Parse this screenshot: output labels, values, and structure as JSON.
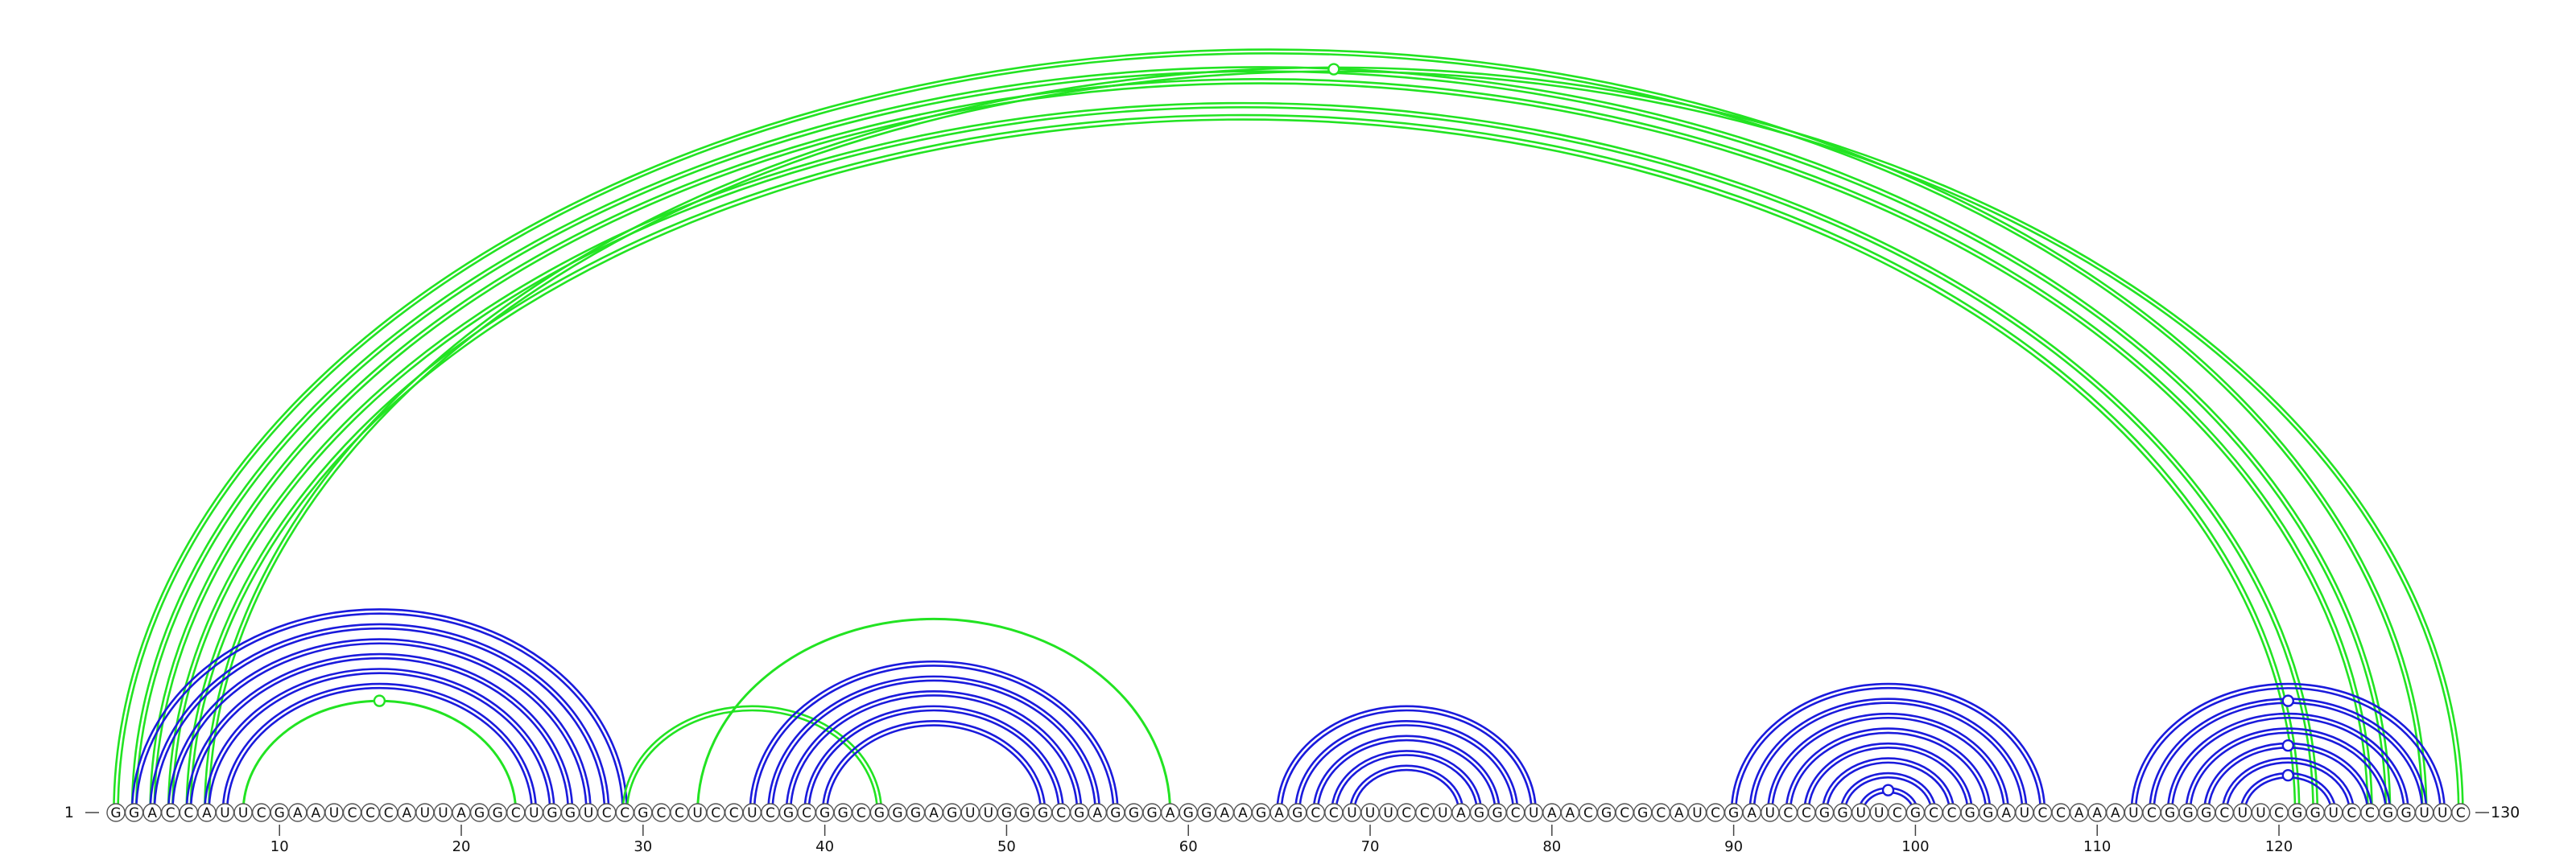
{
  "sequence": "GGACCAUUCGAAUCCCAUUAGGCUGGUCCGCCUCCUCGCGGCGGGAGUUGGGCGAGGGAGGAAGAGCCUUUCCUAGGCUAACGCGCAUCGAUCCGGUUCGCCGGAUCCAAAUCGGGCUUCGGUCCGGUUC",
  "start_label": "1",
  "end_label": "130",
  "axis_ticks": [
    10,
    20,
    30,
    40,
    50,
    60,
    70,
    80,
    90,
    100,
    110,
    120
  ],
  "colors": {
    "blue": "#1a1adc",
    "green": "#22e322",
    "node_stroke": "#555555"
  },
  "arcs": [
    {
      "i": 1,
      "j": 128,
      "color": "green",
      "double": true
    },
    {
      "i": 2,
      "j": 126,
      "color": "green",
      "double": true
    },
    {
      "i": 3,
      "j": 125,
      "color": "green",
      "double": true
    },
    {
      "i": 4,
      "j": 122,
      "color": "green",
      "double": true
    },
    {
      "i": 5,
      "j": 121,
      "color": "green",
      "double": true
    },
    {
      "i": 6,
      "j": 130,
      "color": "green",
      "double": true,
      "marker": true
    },
    {
      "i": 2,
      "j": 29,
      "color": "blue",
      "double": true
    },
    {
      "i": 3,
      "j": 28,
      "color": "blue",
      "double": true
    },
    {
      "i": 4,
      "j": 27,
      "color": "blue",
      "double": true
    },
    {
      "i": 5,
      "j": 26,
      "color": "blue",
      "double": true
    },
    {
      "i": 6,
      "j": 25,
      "color": "blue",
      "double": true
    },
    {
      "i": 7,
      "j": 24,
      "color": "blue",
      "double": true
    },
    {
      "i": 8,
      "j": 23,
      "color": "green",
      "double": false,
      "marker": true
    },
    {
      "i": 29,
      "j": 43,
      "color": "green",
      "double": true
    },
    {
      "i": 33,
      "j": 59,
      "color": "green",
      "double": false
    },
    {
      "i": 36,
      "j": 56,
      "color": "blue",
      "double": true
    },
    {
      "i": 37,
      "j": 55,
      "color": "blue",
      "double": true
    },
    {
      "i": 38,
      "j": 54,
      "color": "blue",
      "double": true
    },
    {
      "i": 39,
      "j": 53,
      "color": "blue",
      "double": true
    },
    {
      "i": 40,
      "j": 52,
      "color": "blue",
      "double": true
    },
    {
      "i": 65,
      "j": 79,
      "color": "blue",
      "double": true
    },
    {
      "i": 66,
      "j": 78,
      "color": "blue",
      "double": true
    },
    {
      "i": 67,
      "j": 77,
      "color": "blue",
      "double": true
    },
    {
      "i": 68,
      "j": 76,
      "color": "blue",
      "double": true
    },
    {
      "i": 69,
      "j": 75,
      "color": "blue",
      "double": true
    },
    {
      "i": 90,
      "j": 107,
      "color": "blue",
      "double": true
    },
    {
      "i": 91,
      "j": 106,
      "color": "blue",
      "double": true
    },
    {
      "i": 92,
      "j": 105,
      "color": "blue",
      "double": true
    },
    {
      "i": 93,
      "j": 104,
      "color": "blue",
      "double": true
    },
    {
      "i": 94,
      "j": 103,
      "color": "blue",
      "double": true
    },
    {
      "i": 95,
      "j": 102,
      "color": "blue",
      "double": true
    },
    {
      "i": 96,
      "j": 101,
      "color": "blue",
      "double": true
    },
    {
      "i": 97,
      "j": 100,
      "color": "blue",
      "double": true,
      "marker": true
    },
    {
      "i": 112,
      "j": 129,
      "color": "blue",
      "double": true
    },
    {
      "i": 113,
      "j": 128,
      "color": "blue",
      "double": true,
      "marker": true
    },
    {
      "i": 114,
      "j": 127,
      "color": "blue",
      "double": true
    },
    {
      "i": 115,
      "j": 126,
      "color": "blue",
      "double": true
    },
    {
      "i": 116,
      "j": 125,
      "color": "blue",
      "double": true,
      "marker": true
    },
    {
      "i": 117,
      "j": 124,
      "color": "blue",
      "double": true
    },
    {
      "i": 118,
      "j": 123,
      "color": "blue",
      "double": true,
      "marker": true
    }
  ]
}
